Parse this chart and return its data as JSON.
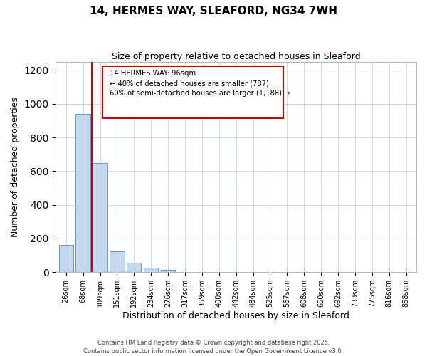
{
  "title": "14, HERMES WAY, SLEAFORD, NG34 7WH",
  "subtitle": "Size of property relative to detached houses in Sleaford",
  "xlabel": "Distribution of detached houses by size in Sleaford",
  "ylabel": "Number of detached properties",
  "bar_labels": [
    "26sqm",
    "68sqm",
    "109sqm",
    "151sqm",
    "192sqm",
    "234sqm",
    "276sqm",
    "317sqm",
    "359sqm",
    "400sqm",
    "442sqm",
    "484sqm",
    "525sqm",
    "567sqm",
    "608sqm",
    "650sqm",
    "692sqm",
    "733sqm",
    "775sqm",
    "816sqm",
    "858sqm"
  ],
  "bar_values": [
    160,
    940,
    650,
    125,
    58,
    28,
    12,
    0,
    0,
    0,
    0,
    2,
    0,
    0,
    0,
    0,
    0,
    0,
    0,
    0,
    0
  ],
  "bar_color": "#c5d8ed",
  "bar_edge_color": "#6699cc",
  "property_line_label": "14 HERMES WAY: 96sqm",
  "annotation_line1": "← 40% of detached houses are smaller (787)",
  "annotation_line2": "60% of semi-detached houses are larger (1,188) →",
  "annotation_box_color": "#ffffff",
  "annotation_box_edge": "#cc0000",
  "red_line_color": "#cc0000",
  "ylim": [
    0,
    1250
  ],
  "yticks": [
    0,
    200,
    400,
    600,
    800,
    1000,
    1200
  ],
  "footer1": "Contains HM Land Registry data © Crown copyright and database right 2025.",
  "footer2": "Contains public sector information licensed under the Open Government Licence v3.0.",
  "background_color": "#ffffff",
  "plot_background": "#ffffff"
}
